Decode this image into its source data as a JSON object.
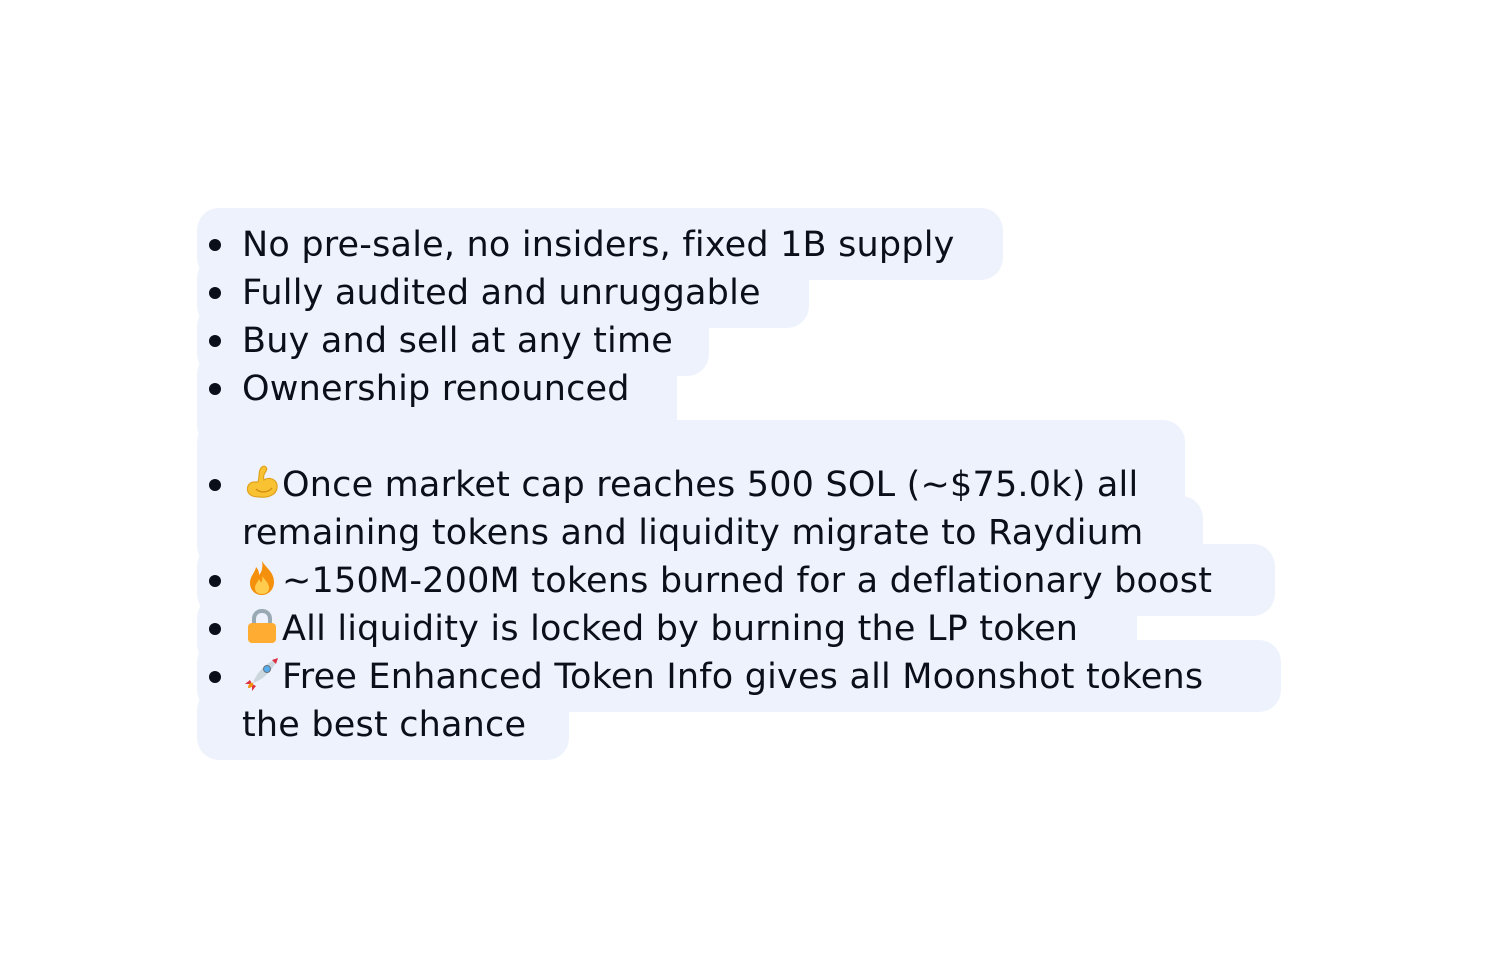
{
  "bullets": {
    "item1": "No pre-sale, no insiders, fixed 1B supply",
    "item2": "Fully audited and unruggable",
    "item3": "Buy and sell at any time",
    "item4": "Ownership renounced",
    "item5_line1": "Once market cap reaches 500 SOL (~$75.0k) all",
    "item5_line2": "remaining tokens and liquidity migrate to Raydium",
    "item6": "~150M-200M tokens burned for a deflationary boost",
    "item7": "All liquidity is locked by burning the LP token",
    "item8_line1": "Free Enhanced Token Info gives all Moonshot tokens",
    "item8_line2": "the best chance"
  },
  "icons": {
    "item5": "flexed-biceps-icon",
    "item6": "fire-icon",
    "item7": "lock-icon",
    "item8": "rocket-icon"
  },
  "colors": {
    "highlight": "#eef2fd",
    "text": "#0b0f1a"
  }
}
